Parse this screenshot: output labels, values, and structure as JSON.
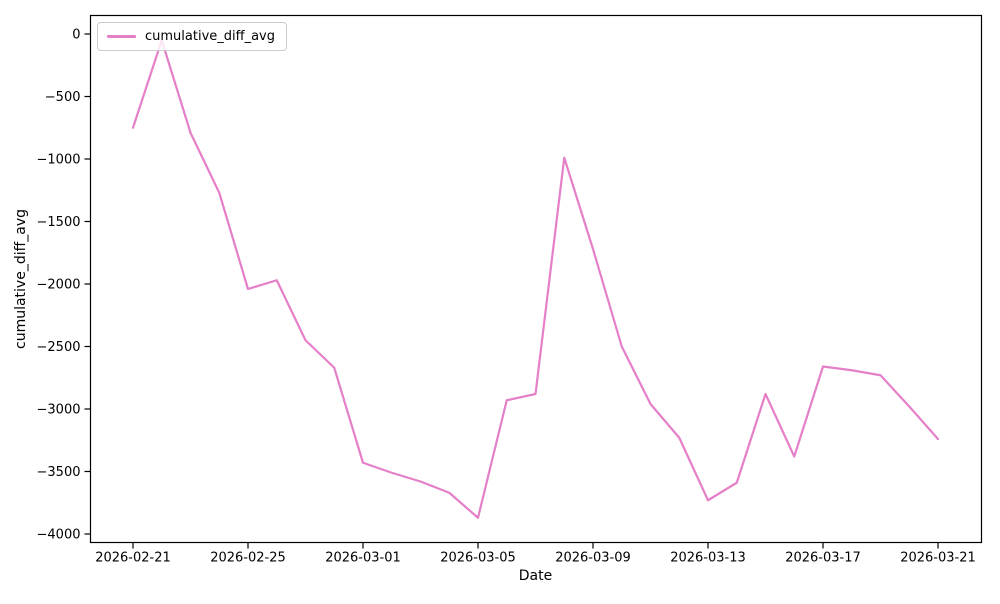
{
  "figure": {
    "background": "#ffffff",
    "axis_color": "#000000",
    "line_color": "#e57fc8"
  },
  "chart_data": {
    "type": "line",
    "title": "",
    "xlabel": "Date",
    "ylabel": "cumulative_diff_avg",
    "grid": false,
    "legend": {
      "position": "upper left",
      "entries": [
        {
          "label": "cumulative_diff_avg",
          "color": "#e57fc8"
        }
      ]
    },
    "x": [
      "2026-02-21",
      "2026-02-22",
      "2026-02-23",
      "2026-02-24",
      "2026-02-25",
      "2026-02-26",
      "2026-02-27",
      "2026-02-28",
      "2026-03-01",
      "2026-03-02",
      "2026-03-03",
      "2026-03-04",
      "2026-03-05",
      "2026-03-06",
      "2026-03-07",
      "2026-03-08",
      "2026-03-09",
      "2026-03-10",
      "2026-03-11",
      "2026-03-12",
      "2026-03-13",
      "2026-03-14",
      "2026-03-15",
      "2026-03-16",
      "2026-03-17",
      "2026-03-18",
      "2026-03-19",
      "2026-03-20",
      "2026-03-21"
    ],
    "series": [
      {
        "name": "cumulative_diff_avg",
        "color": "#e57fc8",
        "values": [
          -750,
          -50,
          -790,
          -1270,
          -2040,
          -1970,
          -2450,
          -2670,
          -3430,
          -3510,
          -3580,
          -3670,
          -3870,
          -2930,
          -2880,
          -990,
          -1720,
          -2500,
          -2960,
          -3230,
          -3730,
          -3590,
          -2880,
          -3380,
          -2660,
          -2690,
          -2730,
          -2980,
          -3240
        ]
      }
    ],
    "x_tick_indices": [
      0,
      4,
      8,
      12,
      16,
      20,
      24,
      28
    ],
    "x_tick_labels": [
      "2026-02-21",
      "2026-02-25",
      "2026-03-01",
      "2026-03-05",
      "2026-03-09",
      "2026-03-13",
      "2026-03-17",
      "2026-03-21"
    ],
    "y_ticks": [
      0,
      -500,
      -1000,
      -1500,
      -2000,
      -2500,
      -3000,
      -3500,
      -4000
    ],
    "y_tick_labels": [
      "0",
      "−500",
      "−1000",
      "−1500",
      "−2000",
      "−2500",
      "−3000",
      "−3500",
      "−4000"
    ],
    "ylim": [
      -4068,
      148
    ]
  }
}
